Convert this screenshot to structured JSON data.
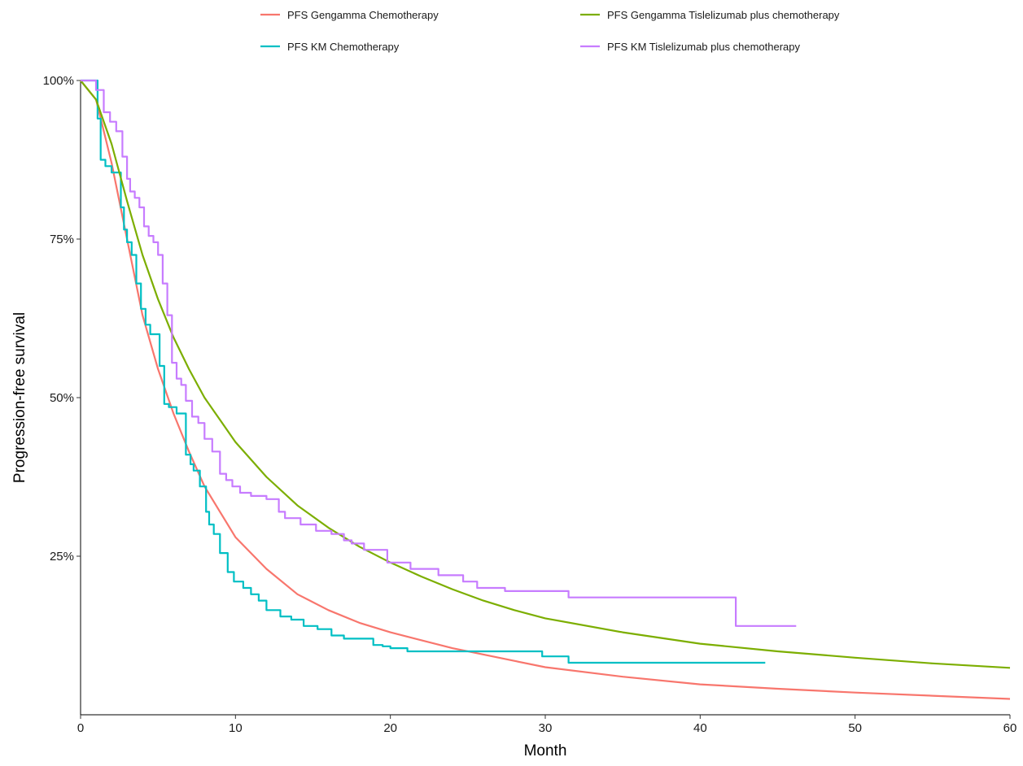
{
  "chart_data": {
    "type": "line",
    "title": "",
    "xlabel": "Month",
    "ylabel": "Progression-free survival",
    "xlim": [
      0,
      60
    ],
    "ylim": [
      0,
      1
    ],
    "x_ticks": [
      0,
      10,
      20,
      30,
      40,
      50,
      60
    ],
    "x_tick_labels": [
      "0",
      "10",
      "20",
      "30",
      "40",
      "50",
      "60"
    ],
    "y_ticks": [
      0.25,
      0.5,
      0.75,
      1.0
    ],
    "y_tick_labels": [
      "25%",
      "50%",
      "75%",
      "100%"
    ],
    "grid": false,
    "legend_position": "top",
    "series": [
      {
        "name": "PFS Gengamma Chemotherapy",
        "color": "#F8766D",
        "style": "smooth",
        "x": [
          0,
          1,
          2,
          3,
          4,
          5,
          6,
          7,
          8,
          9,
          10,
          12,
          14,
          16,
          18,
          20,
          24,
          28,
          30,
          35,
          40,
          45,
          50,
          55,
          60
        ],
        "y": [
          1.0,
          0.97,
          0.87,
          0.75,
          0.63,
          0.545,
          0.475,
          0.415,
          0.36,
          0.32,
          0.28,
          0.23,
          0.19,
          0.165,
          0.145,
          0.13,
          0.105,
          0.085,
          0.075,
          0.06,
          0.048,
          0.041,
          0.035,
          0.03,
          0.025
        ]
      },
      {
        "name": "PFS KM Chemotherapy",
        "color": "#00BFC4",
        "style": "step",
        "x": [
          0,
          1.0,
          1.1,
          1.3,
          1.6,
          2.0,
          2.6,
          2.8,
          3.0,
          3.3,
          3.6,
          3.9,
          4.2,
          4.5,
          5.1,
          5.4,
          5.7,
          6.2,
          6.8,
          7.1,
          7.3,
          7.7,
          8.1,
          8.3,
          8.6,
          9.0,
          9.5,
          9.9,
          10.5,
          11.0,
          11.5,
          12.0,
          12.9,
          13.6,
          14.4,
          15.3,
          16.2,
          17.0,
          18.9,
          19.5,
          20.0,
          21.1,
          29.8,
          31.5,
          44.2
        ],
        "y": [
          1.0,
          1.0,
          0.94,
          0.875,
          0.865,
          0.855,
          0.8,
          0.765,
          0.745,
          0.725,
          0.68,
          0.64,
          0.615,
          0.6,
          0.55,
          0.49,
          0.485,
          0.475,
          0.41,
          0.395,
          0.385,
          0.36,
          0.32,
          0.3,
          0.285,
          0.255,
          0.225,
          0.21,
          0.2,
          0.19,
          0.18,
          0.165,
          0.155,
          0.15,
          0.14,
          0.135,
          0.125,
          0.12,
          0.11,
          0.108,
          0.105,
          0.1,
          0.092,
          0.082,
          0.082
        ]
      },
      {
        "name": "PFS Gengamma Tislelizumab plus chemotherapy",
        "color": "#7CAE00",
        "style": "smooth",
        "x": [
          0,
          1,
          2,
          3,
          4,
          5,
          6,
          7,
          8,
          9,
          10,
          12,
          14,
          16,
          18,
          20,
          22,
          24,
          26,
          28,
          30,
          35,
          40,
          45,
          50,
          55,
          60
        ],
        "y": [
          1.0,
          0.97,
          0.9,
          0.81,
          0.725,
          0.655,
          0.595,
          0.545,
          0.5,
          0.465,
          0.43,
          0.375,
          0.33,
          0.295,
          0.265,
          0.24,
          0.218,
          0.198,
          0.18,
          0.165,
          0.152,
          0.13,
          0.112,
          0.1,
          0.09,
          0.081,
          0.074
        ]
      },
      {
        "name": "PFS KM Tislelizumab plus chemotherapy",
        "color": "#C77CFF",
        "style": "step",
        "x": [
          0,
          1.0,
          1.5,
          1.9,
          2.3,
          2.7,
          3.0,
          3.2,
          3.5,
          3.8,
          4.1,
          4.4,
          4.7,
          5.0,
          5.3,
          5.6,
          5.9,
          6.2,
          6.5,
          6.8,
          7.2,
          7.6,
          8.0,
          8.5,
          9.0,
          9.4,
          9.8,
          10.3,
          11.0,
          12.0,
          12.8,
          13.2,
          14.2,
          15.2,
          16.2,
          17.0,
          17.5,
          18.3,
          19.8,
          21.3,
          23.1,
          24.7,
          25.6,
          27.4,
          31.5,
          42.3,
          46.2
        ],
        "y": [
          1.0,
          0.985,
          0.95,
          0.935,
          0.92,
          0.88,
          0.845,
          0.825,
          0.815,
          0.8,
          0.77,
          0.755,
          0.745,
          0.725,
          0.68,
          0.63,
          0.555,
          0.53,
          0.52,
          0.495,
          0.47,
          0.46,
          0.435,
          0.415,
          0.38,
          0.37,
          0.36,
          0.35,
          0.345,
          0.34,
          0.32,
          0.31,
          0.3,
          0.29,
          0.285,
          0.275,
          0.27,
          0.26,
          0.24,
          0.23,
          0.22,
          0.21,
          0.2,
          0.195,
          0.185,
          0.14,
          0.14
        ]
      }
    ]
  }
}
